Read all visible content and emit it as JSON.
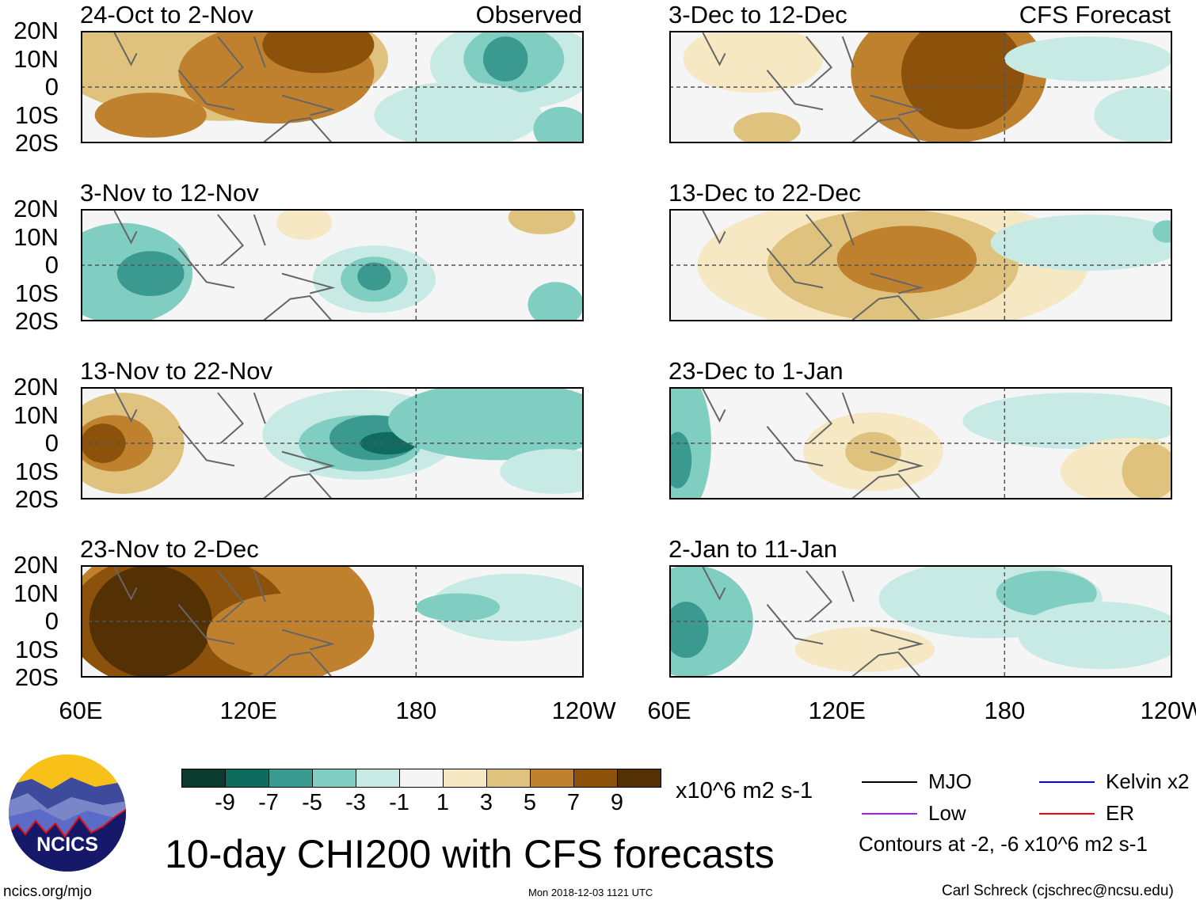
{
  "panels": [
    {
      "title": "24-Oct to 2-Nov",
      "label": "Observed",
      "column": "left",
      "row": 0
    },
    {
      "title": "3-Nov to 12-Nov",
      "column": "left",
      "row": 1
    },
    {
      "title": "13-Nov to 22-Nov",
      "column": "left",
      "row": 2
    },
    {
      "title": "23-Nov to 2-Dec",
      "column": "left",
      "row": 3
    },
    {
      "title": "3-Dec to 12-Dec",
      "label": "CFS Forecast",
      "column": "right",
      "row": 0
    },
    {
      "title": "13-Dec to 22-Dec",
      "column": "right",
      "row": 1
    },
    {
      "title": "23-Dec to 1-Jan",
      "column": "right",
      "row": 2
    },
    {
      "title": "2-Jan to 11-Jan",
      "column": "right",
      "row": 3
    }
  ],
  "lat_labels": [
    "20N",
    "10N",
    "0",
    "10S",
    "20S"
  ],
  "lon_labels": [
    "60E",
    "120E",
    "180",
    "120W"
  ],
  "colorbar": {
    "colors": [
      "#0b3b2e",
      "#0e6b5e",
      "#3a9a90",
      "#80cdc1",
      "#c7eae5",
      "#f5f5f5",
      "#f6e8c3",
      "#dfc27d",
      "#bf812d",
      "#8c510a",
      "#543005"
    ],
    "ticks": [
      "-9",
      "-7",
      "-5",
      "-3",
      "-1",
      "1",
      "3",
      "5",
      "7",
      "9"
    ],
    "units": "x10^6 m2 s-1"
  },
  "legend": {
    "items": [
      {
        "label": "MJO",
        "color": "#000000"
      },
      {
        "label": "Kelvin x2",
        "color": "#0000ff"
      },
      {
        "label": "Low",
        "color": "#a020f0"
      },
      {
        "label": "ER",
        "color": "#ff0000"
      }
    ],
    "contours": "Contours at -2, -6 x10^6 m2 s-1"
  },
  "title": "10-day CHI200 with CFS forecasts",
  "logo_text": "NCICS",
  "footer": {
    "url": "ncics.org/mjo",
    "timestamp": "Mon 2018-12-03 1121 UTC",
    "author": "Carl Schreck (cjschrec@ncsu.edu)"
  }
}
